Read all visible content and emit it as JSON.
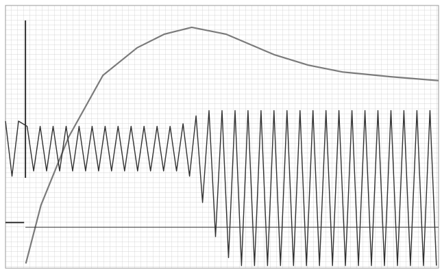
{
  "chart_data": {
    "type": "line",
    "xlim": [
      0,
      100
    ],
    "ylim": [
      0,
      100
    ],
    "grid": true,
    "series": [
      {
        "color": "#7a7a7a",
        "width": 2.2,
        "x": [
          4.7,
          8.2,
          14.6,
          22.5,
          30.4,
          36.7,
          43,
          50.9,
          62,
          69.9,
          77.8,
          88.9,
          100
        ],
        "values": [
          1.8,
          24,
          50,
          73.4,
          83.9,
          89.1,
          91.7,
          89.1,
          81.3,
          77.3,
          74.7,
          72.9,
          71.4
        ]
      },
      {
        "color": "#303030",
        "width": 1.4,
        "x": [
          0,
          1.5,
          3,
          5,
          6.5,
          8,
          9.5,
          11,
          12.5,
          14,
          15.5,
          17,
          18.5,
          20,
          21.5,
          23,
          24.5,
          26,
          27.5,
          29,
          30.5,
          32,
          33.5,
          35,
          36.5,
          38,
          39.5,
          41,
          42.5,
          44,
          45.5,
          47,
          48.5,
          50,
          51.5,
          53,
          54.5,
          56,
          57.5,
          59,
          60.5,
          62,
          63.5,
          65,
          66.5,
          68,
          69.5,
          71,
          72.5,
          74,
          75.5,
          77,
          78.5,
          80,
          81.5,
          83,
          84.5,
          86,
          87.5,
          89,
          90.5,
          92,
          93.5,
          95,
          96.5,
          98,
          99.5
        ],
        "values": [
          56,
          35,
          56,
          54,
          37,
          54,
          37,
          54,
          37,
          54,
          37,
          54,
          37,
          54,
          37,
          54,
          37,
          54,
          37,
          54,
          37,
          54,
          37,
          54,
          37,
          54,
          37,
          55,
          35,
          58,
          25,
          60,
          12,
          60,
          4,
          60,
          1,
          60,
          1,
          60,
          1,
          60,
          1,
          60,
          1,
          60,
          1,
          60,
          1,
          60,
          1,
          60,
          1,
          60,
          1,
          60,
          1,
          60,
          1,
          60,
          1,
          60,
          1,
          60,
          1,
          60,
          1
        ]
      },
      {
        "color": "#303030",
        "width": 2,
        "x": [
          4.6,
          4.6
        ],
        "values": [
          94.3,
          34.4
        ]
      },
      {
        "color": "#303030",
        "width": 2,
        "x": [
          0,
          4.3
        ],
        "values": [
          17.4,
          17.4
        ]
      },
      {
        "color": "#303030",
        "width": 1,
        "x": [
          4.6,
          100
        ],
        "values": [
          15.6,
          15.6
        ]
      }
    ]
  }
}
